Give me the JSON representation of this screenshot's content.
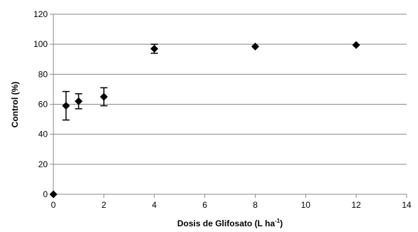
{
  "chart_data": {
    "type": "scatter",
    "title": "",
    "xlabel": "Dosis de Glifosato (L ha",
    "xlabel_sup": "-1",
    "xlabel_suffix": ")",
    "ylabel": "Control (%)",
    "xlim": [
      0,
      14
    ],
    "ylim": [
      0,
      120
    ],
    "xticks": [
      0,
      2,
      4,
      6,
      8,
      10,
      12,
      14
    ],
    "yticks": [
      0,
      20,
      40,
      60,
      80,
      100,
      120
    ],
    "grid": "horizontal",
    "legend": "none",
    "marker": "diamond",
    "marker_color": "#000000",
    "grid_color": "#888888",
    "points": [
      {
        "x": 0,
        "y": 0,
        "err": 0
      },
      {
        "x": 0.5,
        "y": 59,
        "err": 9.5
      },
      {
        "x": 1,
        "y": 62,
        "err": 5
      },
      {
        "x": 2,
        "y": 65,
        "err": 6
      },
      {
        "x": 4,
        "y": 97,
        "err": 3
      },
      {
        "x": 8,
        "y": 98.5,
        "err": 0
      },
      {
        "x": 12,
        "y": 99.5,
        "err": 0
      }
    ]
  }
}
